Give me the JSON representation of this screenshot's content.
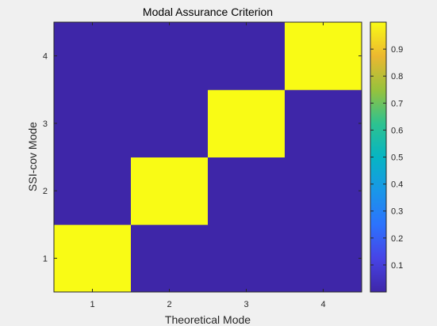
{
  "chart_data": {
    "type": "heatmap",
    "title": "Modal Assurance Criterion",
    "xlabel": "Theoretical Mode",
    "ylabel": "SSI-cov Mode",
    "x_categories": [
      "1",
      "2",
      "3",
      "4"
    ],
    "y_categories": [
      "1",
      "2",
      "3",
      "4"
    ],
    "values": [
      [
        1,
        0,
        0,
        0
      ],
      [
        0,
        1,
        0,
        0
      ],
      [
        0,
        0,
        1,
        0
      ],
      [
        0,
        0,
        0,
        1
      ]
    ],
    "values_note": "values[row][col]; row index = SSI-cov Mode (1..4), col index = Theoretical Mode (1..4)",
    "clim": [
      0,
      1
    ],
    "colormap": "parula",
    "colorbar_ticks": [
      "0.1",
      "0.2",
      "0.3",
      "0.4",
      "0.5",
      "0.6",
      "0.7",
      "0.8",
      "0.9"
    ],
    "colors": {
      "low": "#3e26a8",
      "high": "#f9fb15",
      "figure_background": "#f0f0f0",
      "axis": "#262626"
    }
  }
}
